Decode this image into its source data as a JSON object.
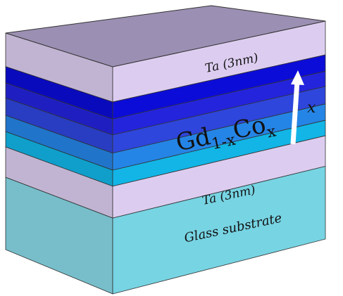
{
  "layers": {
    "cap": "Ta (3nm)",
    "buffer": "Ta (3nm)",
    "substrate": "Glass substrate"
  },
  "formula": {
    "element1": "Gd",
    "sub1": "1-x",
    "element2": "Co",
    "sub2": "x"
  },
  "arrow_label": "x"
}
